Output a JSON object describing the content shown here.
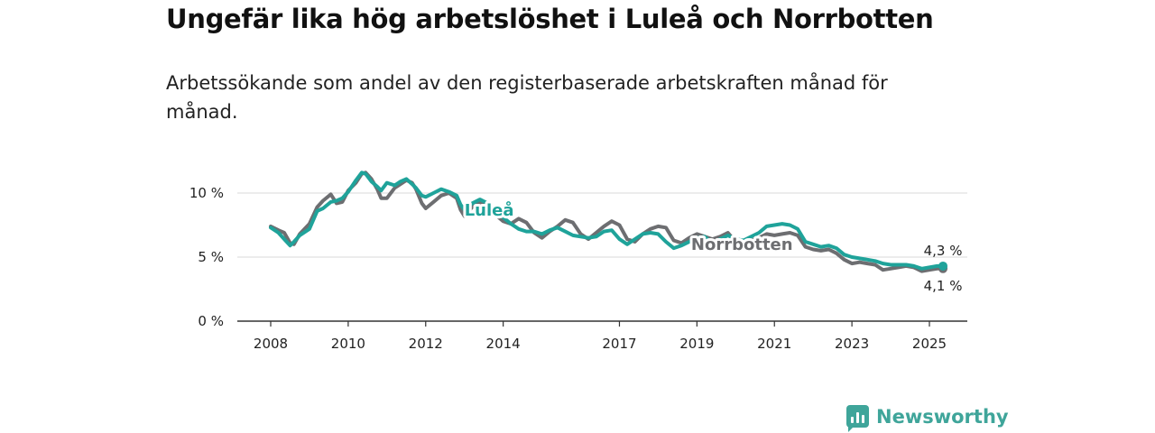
{
  "title": "Ungefär lika hög arbetslöshet i Luleå och Norrbotten",
  "subtitle": "Arbetssökande som andel av den registerbaserade arbetskraften månad för månad.",
  "brand": {
    "name": "Newsworthy",
    "color": "#3fa59a"
  },
  "chart_data": {
    "type": "line",
    "ylim": [
      0,
      12
    ],
    "xlim": [
      2008,
      2026.2
    ],
    "grid": true,
    "yticks": [
      {
        "v": 0,
        "label": "0 %"
      },
      {
        "v": 5,
        "label": "5 %"
      },
      {
        "v": 10,
        "label": "10 %"
      }
    ],
    "xticks": [
      {
        "v": 2008,
        "label": "2008"
      },
      {
        "v": 2010,
        "label": "2010"
      },
      {
        "v": 2012,
        "label": "2012"
      },
      {
        "v": 2014,
        "label": "2014"
      },
      {
        "v": 2017,
        "label": "2017"
      },
      {
        "v": 2019,
        "label": "2019"
      },
      {
        "v": 2021,
        "label": "2021"
      },
      {
        "v": 2023,
        "label": "2023"
      },
      {
        "v": 2025,
        "label": "2025"
      }
    ],
    "series": [
      {
        "name": "Norrbotten",
        "color": "#6d6e71",
        "label_at": [
          2018.85,
          5.55
        ],
        "end_label": "4,1 %",
        "end_value": 4.1,
        "points": [
          [
            2008.0,
            7.4
          ],
          [
            2008.2,
            7.1
          ],
          [
            2008.35,
            6.9
          ],
          [
            2008.5,
            6.1
          ],
          [
            2008.6,
            6.0
          ],
          [
            2008.75,
            6.8
          ],
          [
            2009.0,
            7.6
          ],
          [
            2009.2,
            8.9
          ],
          [
            2009.35,
            9.4
          ],
          [
            2009.55,
            9.9
          ],
          [
            2009.7,
            9.2
          ],
          [
            2009.85,
            9.3
          ],
          [
            2010.0,
            10.2
          ],
          [
            2010.2,
            10.8
          ],
          [
            2010.35,
            11.5
          ],
          [
            2010.45,
            11.6
          ],
          [
            2010.6,
            11.1
          ],
          [
            2010.75,
            10.3
          ],
          [
            2010.85,
            9.6
          ],
          [
            2011.0,
            9.6
          ],
          [
            2011.2,
            10.4
          ],
          [
            2011.35,
            10.7
          ],
          [
            2011.5,
            11.0
          ],
          [
            2011.65,
            10.8
          ],
          [
            2011.75,
            10.3
          ],
          [
            2011.9,
            9.2
          ],
          [
            2012.0,
            8.8
          ],
          [
            2012.2,
            9.3
          ],
          [
            2012.4,
            9.8
          ],
          [
            2012.6,
            10.0
          ],
          [
            2012.8,
            9.6
          ],
          [
            2012.9,
            8.7
          ],
          [
            2013.0,
            8.2
          ],
          [
            2013.2,
            8.9
          ],
          [
            2013.4,
            9.3
          ],
          [
            2013.6,
            9.0
          ],
          [
            2013.8,
            8.3
          ],
          [
            2014.0,
            7.8
          ],
          [
            2014.2,
            7.6
          ],
          [
            2014.4,
            8.0
          ],
          [
            2014.6,
            7.7
          ],
          [
            2014.8,
            6.9
          ],
          [
            2015.0,
            6.5
          ],
          [
            2015.2,
            7.0
          ],
          [
            2015.4,
            7.4
          ],
          [
            2015.6,
            7.9
          ],
          [
            2015.8,
            7.7
          ],
          [
            2016.0,
            6.8
          ],
          [
            2016.2,
            6.4
          ],
          [
            2016.4,
            6.9
          ],
          [
            2016.6,
            7.4
          ],
          [
            2016.8,
            7.8
          ],
          [
            2017.0,
            7.5
          ],
          [
            2017.2,
            6.4
          ],
          [
            2017.4,
            6.2
          ],
          [
            2017.6,
            6.8
          ],
          [
            2017.8,
            7.2
          ],
          [
            2018.0,
            7.4
          ],
          [
            2018.2,
            7.3
          ],
          [
            2018.4,
            6.3
          ],
          [
            2018.6,
            6.1
          ],
          [
            2018.8,
            6.5
          ],
          [
            2019.0,
            6.8
          ],
          [
            2019.2,
            6.6
          ],
          [
            2019.4,
            6.4
          ],
          [
            2019.6,
            6.6
          ],
          [
            2019.8,
            6.9
          ],
          [
            2020.0,
            6.2
          ],
          [
            2020.2,
            6.0
          ],
          [
            2020.4,
            6.3
          ],
          [
            2020.6,
            6.5
          ],
          [
            2020.8,
            6.8
          ],
          [
            2021.0,
            6.7
          ],
          [
            2021.2,
            6.8
          ],
          [
            2021.4,
            6.9
          ],
          [
            2021.6,
            6.7
          ],
          [
            2021.8,
            5.8
          ],
          [
            2022.0,
            5.6
          ],
          [
            2022.2,
            5.5
          ],
          [
            2022.4,
            5.6
          ],
          [
            2022.6,
            5.3
          ],
          [
            2022.8,
            4.8
          ],
          [
            2023.0,
            4.5
          ],
          [
            2023.2,
            4.6
          ],
          [
            2023.4,
            4.5
          ],
          [
            2023.6,
            4.4
          ],
          [
            2023.8,
            4.0
          ],
          [
            2024.0,
            4.1
          ],
          [
            2024.2,
            4.2
          ],
          [
            2024.4,
            4.3
          ],
          [
            2024.6,
            4.2
          ],
          [
            2024.8,
            3.9
          ],
          [
            2025.0,
            4.0
          ],
          [
            2025.2,
            4.1
          ],
          [
            2025.35,
            4.1
          ]
        ]
      },
      {
        "name": "Luleå",
        "color": "#1fa39a",
        "label_at": [
          2013.0,
          8.25
        ],
        "end_label": "4,3 %",
        "end_value": 4.3,
        "points": [
          [
            2008.0,
            7.3
          ],
          [
            2008.2,
            6.9
          ],
          [
            2008.35,
            6.4
          ],
          [
            2008.5,
            5.9
          ],
          [
            2008.6,
            6.2
          ],
          [
            2008.75,
            6.7
          ],
          [
            2009.0,
            7.2
          ],
          [
            2009.2,
            8.6
          ],
          [
            2009.35,
            8.8
          ],
          [
            2009.55,
            9.3
          ],
          [
            2009.7,
            9.4
          ],
          [
            2009.85,
            9.6
          ],
          [
            2010.0,
            10.1
          ],
          [
            2010.2,
            11.0
          ],
          [
            2010.35,
            11.6
          ],
          [
            2010.45,
            11.5
          ],
          [
            2010.6,
            10.9
          ],
          [
            2010.75,
            10.5
          ],
          [
            2010.85,
            10.2
          ],
          [
            2011.0,
            10.8
          ],
          [
            2011.2,
            10.6
          ],
          [
            2011.35,
            10.9
          ],
          [
            2011.5,
            11.1
          ],
          [
            2011.65,
            10.7
          ],
          [
            2011.75,
            10.4
          ],
          [
            2011.9,
            9.8
          ],
          [
            2012.0,
            9.7
          ],
          [
            2012.2,
            10.0
          ],
          [
            2012.4,
            10.3
          ],
          [
            2012.6,
            10.1
          ],
          [
            2012.8,
            9.8
          ],
          [
            2012.9,
            9.1
          ],
          [
            2013.0,
            8.7
          ],
          [
            2013.2,
            9.2
          ],
          [
            2013.4,
            9.5
          ],
          [
            2013.6,
            9.2
          ],
          [
            2013.8,
            8.7
          ],
          [
            2014.0,
            8.1
          ],
          [
            2014.2,
            7.6
          ],
          [
            2014.4,
            7.2
          ],
          [
            2014.6,
            7.0
          ],
          [
            2014.8,
            7.0
          ],
          [
            2015.0,
            6.8
          ],
          [
            2015.2,
            7.1
          ],
          [
            2015.4,
            7.3
          ],
          [
            2015.6,
            7.0
          ],
          [
            2015.8,
            6.7
          ],
          [
            2016.0,
            6.6
          ],
          [
            2016.2,
            6.5
          ],
          [
            2016.4,
            6.6
          ],
          [
            2016.6,
            7.0
          ],
          [
            2016.8,
            7.1
          ],
          [
            2017.0,
            6.4
          ],
          [
            2017.2,
            6.0
          ],
          [
            2017.4,
            6.4
          ],
          [
            2017.6,
            6.8
          ],
          [
            2017.8,
            6.9
          ],
          [
            2018.0,
            6.8
          ],
          [
            2018.2,
            6.2
          ],
          [
            2018.4,
            5.7
          ],
          [
            2018.6,
            5.9
          ],
          [
            2018.8,
            6.2
          ],
          [
            2019.0,
            6.5
          ],
          [
            2019.2,
            6.6
          ],
          [
            2019.4,
            6.1
          ],
          [
            2019.6,
            6.4
          ],
          [
            2019.8,
            6.7
          ],
          [
            2020.0,
            6.4
          ],
          [
            2020.2,
            6.3
          ],
          [
            2020.4,
            6.6
          ],
          [
            2020.6,
            6.9
          ],
          [
            2020.8,
            7.4
          ],
          [
            2021.0,
            7.5
          ],
          [
            2021.2,
            7.6
          ],
          [
            2021.4,
            7.5
          ],
          [
            2021.6,
            7.2
          ],
          [
            2021.8,
            6.2
          ],
          [
            2022.0,
            6.0
          ],
          [
            2022.2,
            5.8
          ],
          [
            2022.4,
            5.9
          ],
          [
            2022.6,
            5.7
          ],
          [
            2022.8,
            5.2
          ],
          [
            2023.0,
            5.0
          ],
          [
            2023.2,
            4.9
          ],
          [
            2023.4,
            4.8
          ],
          [
            2023.6,
            4.7
          ],
          [
            2023.8,
            4.5
          ],
          [
            2024.0,
            4.4
          ],
          [
            2024.2,
            4.4
          ],
          [
            2024.4,
            4.4
          ],
          [
            2024.6,
            4.3
          ],
          [
            2024.8,
            4.1
          ],
          [
            2025.0,
            4.2
          ],
          [
            2025.2,
            4.3
          ],
          [
            2025.35,
            4.3
          ]
        ]
      }
    ]
  }
}
